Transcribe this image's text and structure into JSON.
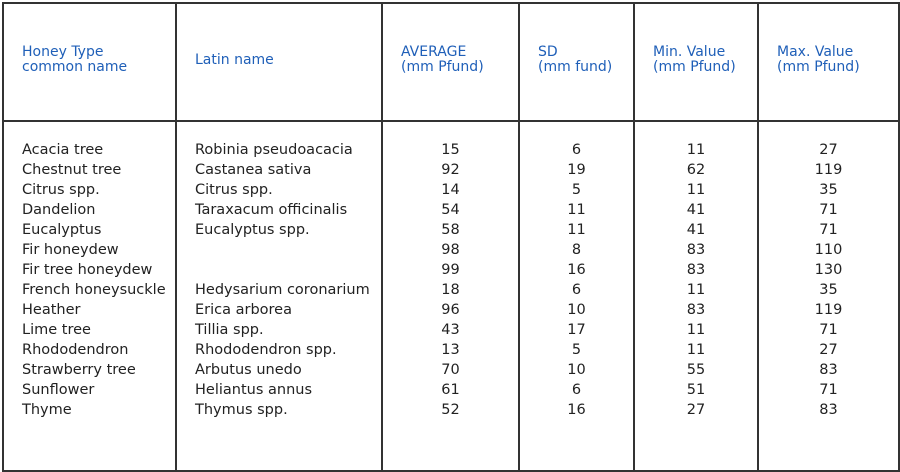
{
  "headers": [
    [
      "Honey Type",
      "common name"
    ],
    [
      "",
      "Latin name"
    ],
    [
      "AVERAGE",
      "(mm Pfund)"
    ],
    [
      "SD",
      "(mm fund)"
    ],
    [
      "Min. Value",
      "(mm Pfund)"
    ],
    [
      "Max. Value",
      "(mm Pfund)"
    ]
  ],
  "rows": [
    {
      "common": "Acacia tree",
      "latin": "Robinia pseudoacacia",
      "avg": "15",
      "sd": "6",
      "min": "11",
      "max": "27"
    },
    {
      "common": "Chestnut tree",
      "latin": "Castanea sativa",
      "avg": "92",
      "sd": "19",
      "min": "62",
      "max": "119"
    },
    {
      "common": "Citrus spp.",
      "latin": "Citrus spp.",
      "avg": "14",
      "sd": "5",
      "min": "11",
      "max": "35"
    },
    {
      "common": "Dandelion",
      "latin": "Taraxacum officinalis",
      "avg": "54",
      "sd": "11",
      "min": "41",
      "max": "71"
    },
    {
      "common": "Eucalyptus",
      "latin": "Eucalyptus spp.",
      "avg": "58",
      "sd": "11",
      "min": "41",
      "max": "71"
    },
    {
      "common": "Fir honeydew",
      "latin": "",
      "avg": "98",
      "sd": "8",
      "min": "83",
      "max": "110"
    },
    {
      "common": "Fir tree honeydew",
      "latin": "",
      "avg": "99",
      "sd": "16",
      "min": "83",
      "max": "130"
    },
    {
      "common": "French honeysuckle",
      "latin": "Hedysarium coronarium",
      "avg": "18",
      "sd": "6",
      "min": "11",
      "max": "35"
    },
    {
      "common": "Heather",
      "latin": "Erica arborea",
      "avg": "96",
      "sd": "10",
      "min": "83",
      "max": "119"
    },
    {
      "common": "Lime tree",
      "latin": "Tillia spp.",
      "avg": "43",
      "sd": "17",
      "min": "11",
      "max": "71"
    },
    {
      "common": "Rhododendron",
      "latin": "Rhododendron spp.",
      "avg": "13",
      "sd": "5",
      "min": "11",
      "max": "27"
    },
    {
      "common": "Strawberry tree",
      "latin": "Arbutus unedo",
      "avg": "70",
      "sd": "10",
      "min": "55",
      "max": "83"
    },
    {
      "common": "Sunflower",
      "latin": "Heliantus annus",
      "avg": "61",
      "sd": "6",
      "min": "51",
      "max": "71"
    },
    {
      "common": "Thyme",
      "latin": "Thymus spp.",
      "avg": "52",
      "sd": "16",
      "min": "27",
      "max": "83"
    }
  ],
  "colors": {
    "header_text": "#1f5fb8",
    "border": "#333333"
  }
}
